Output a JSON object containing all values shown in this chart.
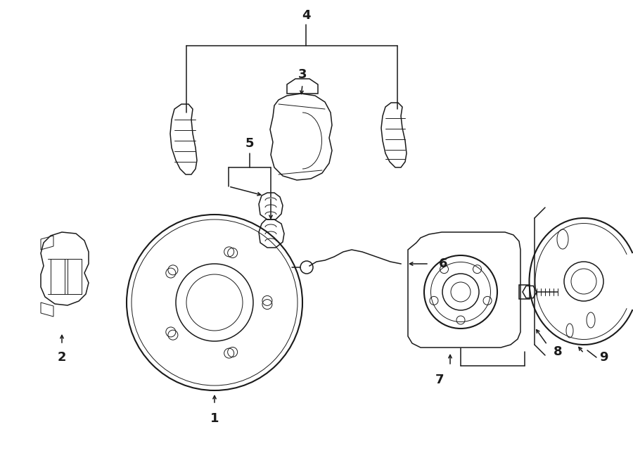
{
  "bg_color": "#ffffff",
  "line_color": "#1a1a1a",
  "figsize": [
    9.0,
    6.61
  ],
  "dpi": 100,
  "lw": 1.1,
  "lw_thin": 0.7,
  "lw_thick": 1.5
}
